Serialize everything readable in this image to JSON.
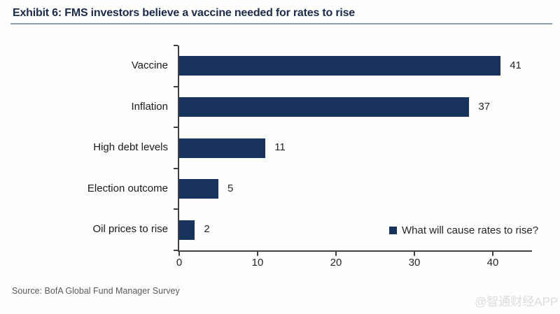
{
  "header": {
    "title": "Exhibit 6: FMS investors believe a vaccine needed for rates to rise"
  },
  "chart_data": {
    "type": "bar",
    "orientation": "horizontal",
    "title": "Exhibit 6: FMS investors believe a vaccine needed for rates to rise",
    "categories": [
      "Vaccine",
      "Inflation",
      "High debt levels",
      "Election outcome",
      "Oil prices to rise"
    ],
    "values": [
      41,
      37,
      11,
      5,
      2
    ],
    "x_ticks": [
      0,
      10,
      20,
      30,
      40
    ],
    "xlim": [
      0,
      45
    ],
    "xlabel": "",
    "ylabel": "",
    "grid": false,
    "legend": "What will cause rates to rise?",
    "legend_position": "inside-bottom-right",
    "bar_color": "#18345c"
  },
  "footer": {
    "source": "Source: BofA Global Fund Manager Survey",
    "watermark": "@智通财经APP"
  },
  "colors": {
    "bar": "#18345c",
    "title_text": "#1b2b49",
    "title_underline": "#8fa0ae",
    "axis": "#404040",
    "label_text": "#262626",
    "source_text": "#5a5a5a",
    "watermark_text": "#dcdcdc",
    "background": "#fdfdfb"
  }
}
